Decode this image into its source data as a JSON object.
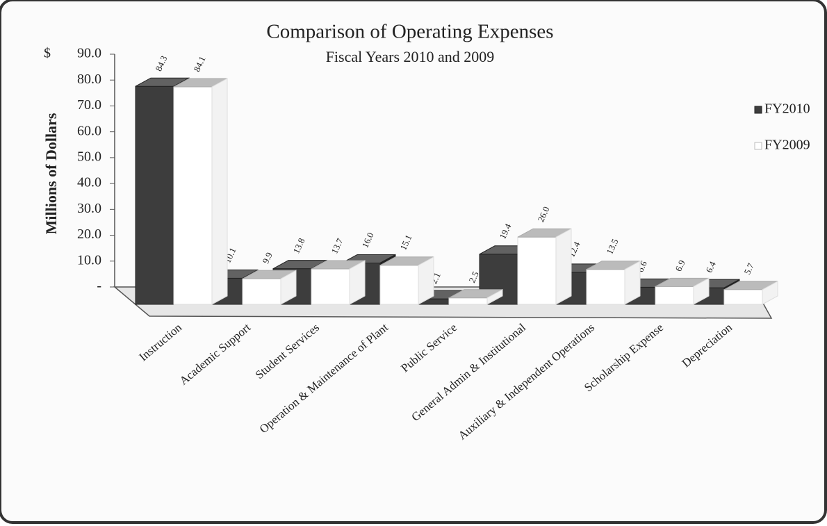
{
  "chart_data": {
    "type": "bar3d",
    "title": "Comparison of Operating Expenses",
    "subtitle": "Fiscal Years 2010 and 2009",
    "ylabel": "Millions of Dollars",
    "y_unit": "$",
    "categories": [
      "Instruction",
      "Academic Support",
      "Student Services",
      "Operation & Maintenance of Plant",
      "Public Service",
      "General Admin & Institutional",
      "Auxiliary & Independent Operations",
      "Scholarship Expense",
      "Depreciation"
    ],
    "series": [
      {
        "name": "FY2010",
        "color": "#3d3d3d",
        "values": [
          84.3,
          10.1,
          13.8,
          16.0,
          2.1,
          19.4,
          12.4,
          6.6,
          6.4
        ],
        "value_labels": [
          "84.3",
          "10.1",
          "13.8",
          "16.0",
          "2.1",
          "19.4",
          "12.4",
          "6.6",
          "6.4"
        ]
      },
      {
        "name": "FY2009",
        "color": "#ffffff",
        "values": [
          84.1,
          9.9,
          13.7,
          15.1,
          2.5,
          26.0,
          13.5,
          6.9,
          5.7
        ],
        "value_labels": [
          "84.1",
          "9.9",
          "13.7",
          "15.1",
          "2.5",
          "26.0",
          "13.5",
          "6.9",
          "5.7"
        ]
      }
    ],
    "ylim": [
      0,
      90
    ],
    "yticks": [
      {
        "value": 0,
        "label": "-"
      },
      {
        "value": 10,
        "label": "10.0"
      },
      {
        "value": 20,
        "label": "20.0"
      },
      {
        "value": 30,
        "label": "30.0"
      },
      {
        "value": 40,
        "label": "40.0"
      },
      {
        "value": 50,
        "label": "50.0"
      },
      {
        "value": 60,
        "label": "60.0"
      },
      {
        "value": 70,
        "label": "70.0"
      },
      {
        "value": 80,
        "label": "80.0"
      },
      {
        "value": 90,
        "label": "90.0"
      }
    ],
    "legend": "right"
  }
}
